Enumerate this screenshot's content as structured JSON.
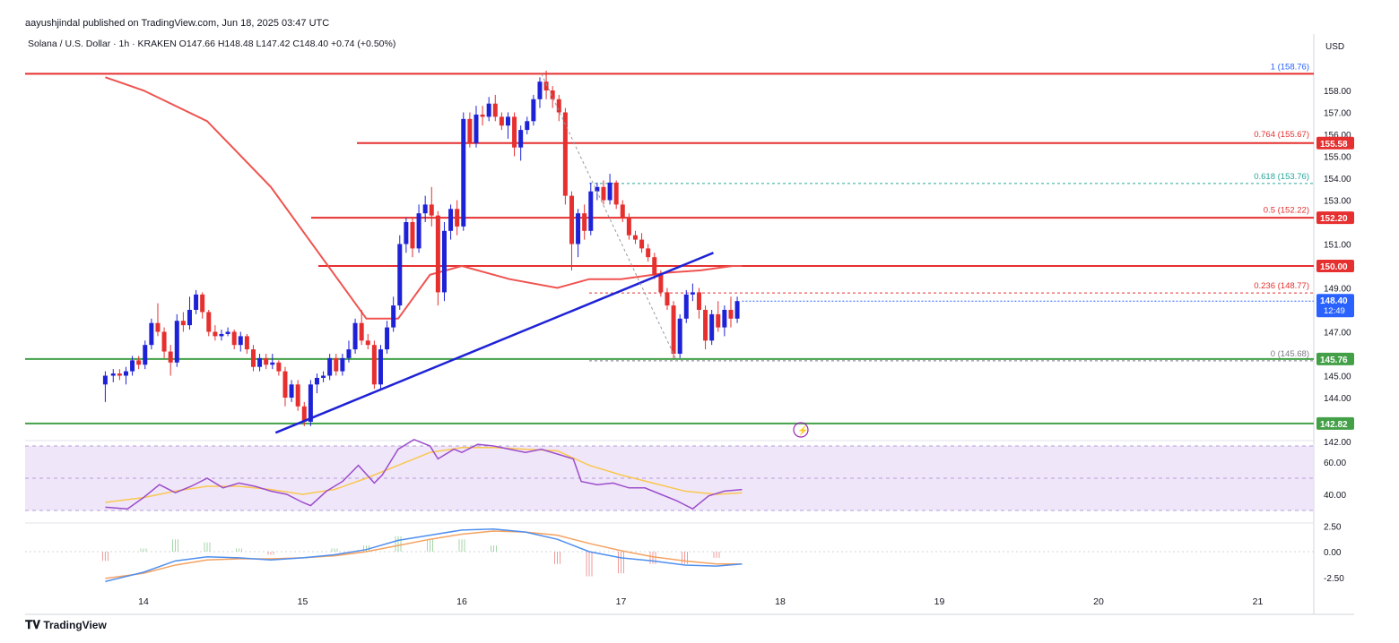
{
  "header": {
    "publisher": "aayushjindal published on TradingView.com, Jun 18, 2025 03:47 UTC",
    "symbol_line": "Solana / U.S. Dollar · 1h · KRAKEN  O147.66  H148.48  L147.42  C148.40  +0.74 (+0.50%)"
  },
  "footer": {
    "brand": "TradingView"
  },
  "chart_data": {
    "type": "candlestick",
    "currency": "USD",
    "x_tick_labels": [
      "14",
      "15",
      "16",
      "17",
      "18",
      "19",
      "20",
      "21"
    ],
    "price_axis": {
      "ticks": [
        "158.00",
        "157.00",
        "156.00",
        "155.00",
        "154.00",
        "153.00",
        "151.00",
        "149.00",
        "147.00",
        "145.00",
        "144.00",
        "142.00"
      ],
      "ylim": [
        141.4,
        159.6
      ]
    },
    "last_price": {
      "value": "148.40",
      "timer": "12:49",
      "color": "#2962ff"
    },
    "horizontal_levels": [
      {
        "label": "155.58",
        "value": 155.6,
        "color": "#e62f2f"
      },
      {
        "label": "152.20",
        "value": 152.2,
        "color": "#e62f2f"
      },
      {
        "label": "150.00",
        "value": 150.0,
        "color": "#e62f2f"
      },
      {
        "label": "145.76",
        "value": 145.76,
        "color": "#43a047"
      },
      {
        "label": "142.82",
        "value": 142.82,
        "color": "#43a047"
      }
    ],
    "top_red_level": 158.76,
    "fibonacci": [
      {
        "label": "1 (158.76)",
        "value": 158.76,
        "color": "#2962ff"
      },
      {
        "label": "0.764 (155.67)",
        "value": 155.67,
        "color": "#e62f2f"
      },
      {
        "label": "0.618 (153.76)",
        "value": 153.76,
        "color": "#26a69a"
      },
      {
        "label": "0.5 (152.22)",
        "value": 152.22,
        "color": "#e62f2f"
      },
      {
        "label": "0.236 (148.77)",
        "value": 148.77,
        "color": "#e62f2f"
      },
      {
        "label": "0 (145.68)",
        "value": 145.68,
        "color": "#787b86"
      }
    ],
    "trendline": {
      "from": {
        "day": 14.83,
        "price": 142.4
      },
      "to": {
        "day": 17.58,
        "price": 150.6
      },
      "color": "#1e22d6"
    },
    "candles": [
      [
        13.76,
        144.6,
        145.0,
        143.8,
        145.2
      ],
      [
        13.81,
        145.0,
        145.1,
        144.7,
        145.3
      ],
      [
        13.85,
        145.1,
        145.0,
        144.8,
        145.3
      ],
      [
        13.89,
        145.0,
        145.2,
        144.6,
        145.4
      ],
      [
        13.93,
        145.2,
        145.7,
        145.0,
        145.9
      ],
      [
        13.97,
        145.7,
        145.5,
        145.3,
        145.9
      ],
      [
        14.01,
        145.5,
        146.4,
        145.3,
        146.6
      ],
      [
        14.05,
        146.4,
        147.4,
        146.2,
        147.6
      ],
      [
        14.09,
        147.4,
        147.0,
        146.8,
        148.3
      ],
      [
        14.13,
        147.0,
        146.1,
        145.8,
        147.2
      ],
      [
        14.17,
        146.1,
        145.6,
        145.0,
        146.4
      ],
      [
        14.21,
        145.6,
        147.5,
        145.4,
        147.8
      ],
      [
        14.25,
        147.5,
        147.3,
        147.0,
        147.9
      ],
      [
        14.29,
        147.3,
        148.0,
        147.1,
        148.6
      ],
      [
        14.33,
        148.0,
        148.7,
        147.8,
        148.9
      ],
      [
        14.37,
        148.7,
        147.9,
        147.6,
        148.8
      ],
      [
        14.41,
        147.9,
        147.0,
        146.8,
        148.0
      ],
      [
        14.45,
        147.0,
        146.8,
        146.6,
        147.3
      ],
      [
        14.49,
        146.8,
        146.9,
        146.6,
        147.1
      ],
      [
        14.53,
        146.9,
        147.0,
        146.8,
        147.2
      ],
      [
        14.57,
        147.0,
        146.4,
        146.2,
        147.1
      ],
      [
        14.61,
        146.4,
        146.8,
        146.1,
        147.0
      ],
      [
        14.65,
        146.8,
        146.2,
        146.0,
        146.9
      ],
      [
        14.69,
        146.2,
        145.4,
        145.2,
        146.4
      ],
      [
        14.73,
        145.4,
        145.8,
        145.2,
        146.0
      ],
      [
        14.77,
        145.8,
        145.5,
        145.3,
        146.0
      ],
      [
        14.81,
        145.5,
        145.6,
        145.3,
        146.0
      ],
      [
        14.85,
        145.6,
        145.2,
        145.0,
        145.7
      ],
      [
        14.89,
        145.2,
        144.0,
        143.6,
        145.4
      ],
      [
        14.93,
        144.0,
        144.6,
        143.8,
        144.8
      ],
      [
        14.97,
        144.6,
        143.6,
        143.4,
        144.8
      ],
      [
        15.01,
        143.6,
        142.9,
        142.7,
        143.8
      ],
      [
        15.05,
        142.9,
        144.6,
        142.7,
        144.8
      ],
      [
        15.09,
        144.6,
        144.9,
        144.2,
        145.1
      ],
      [
        15.13,
        144.9,
        145.0,
        144.7,
        145.2
      ],
      [
        15.17,
        145.0,
        145.8,
        144.8,
        146.0
      ],
      [
        15.21,
        145.8,
        145.2,
        145.0,
        146.0
      ],
      [
        15.25,
        145.2,
        145.8,
        145.0,
        146.0
      ],
      [
        15.29,
        145.8,
        146.2,
        145.6,
        146.6
      ],
      [
        15.33,
        146.2,
        147.4,
        146.0,
        147.6
      ],
      [
        15.37,
        147.4,
        146.6,
        146.4,
        148.0
      ],
      [
        15.41,
        146.6,
        146.4,
        146.2,
        146.9
      ],
      [
        15.45,
        146.4,
        144.6,
        144.4,
        146.6
      ],
      [
        15.49,
        144.6,
        146.2,
        144.4,
        146.4
      ],
      [
        15.53,
        146.2,
        147.2,
        146.0,
        147.5
      ],
      [
        15.57,
        147.2,
        148.2,
        147.0,
        148.6
      ],
      [
        15.61,
        148.2,
        151.0,
        148.0,
        151.4
      ],
      [
        15.65,
        151.0,
        152.0,
        150.6,
        152.2
      ],
      [
        15.69,
        152.0,
        150.8,
        150.4,
        152.2
      ],
      [
        15.73,
        150.8,
        152.4,
        150.6,
        152.8
      ],
      [
        15.77,
        152.4,
        152.8,
        152.0,
        153.2
      ],
      [
        15.81,
        152.8,
        152.3,
        151.8,
        153.6
      ],
      [
        15.85,
        152.3,
        148.8,
        148.2,
        152.5
      ],
      [
        15.89,
        148.8,
        151.6,
        148.4,
        152.0
      ],
      [
        15.93,
        151.6,
        152.6,
        151.2,
        152.8
      ],
      [
        15.97,
        152.6,
        151.8,
        151.4,
        153.0
      ],
      [
        16.01,
        151.8,
        156.7,
        151.6,
        157.0
      ],
      [
        16.05,
        156.7,
        155.6,
        155.4,
        157.0
      ],
      [
        16.09,
        155.6,
        156.9,
        155.4,
        157.3
      ],
      [
        16.13,
        156.9,
        156.8,
        156.4,
        157.3
      ],
      [
        16.17,
        156.8,
        157.4,
        156.6,
        157.7
      ],
      [
        16.21,
        157.4,
        156.8,
        156.6,
        157.8
      ],
      [
        16.25,
        156.8,
        156.4,
        156.2,
        157.0
      ],
      [
        16.29,
        156.4,
        156.8,
        155.8,
        157.0
      ],
      [
        16.33,
        156.8,
        155.4,
        155.0,
        157.0
      ],
      [
        16.37,
        155.4,
        156.2,
        154.8,
        156.4
      ],
      [
        16.41,
        156.2,
        156.6,
        156.0,
        156.8
      ],
      [
        16.45,
        156.6,
        157.6,
        156.4,
        157.8
      ],
      [
        16.49,
        157.6,
        158.4,
        157.2,
        158.6
      ],
      [
        16.53,
        158.4,
        158.0,
        157.6,
        158.9
      ],
      [
        16.57,
        158.0,
        157.6,
        157.2,
        158.2
      ],
      [
        16.61,
        157.6,
        157.0,
        156.6,
        157.8
      ],
      [
        16.65,
        157.0,
        153.2,
        152.8,
        157.2
      ],
      [
        16.69,
        153.2,
        151.0,
        149.8,
        153.4
      ],
      [
        16.73,
        151.0,
        152.4,
        150.4,
        152.6
      ],
      [
        16.77,
        152.4,
        151.6,
        151.2,
        152.8
      ],
      [
        16.81,
        151.6,
        153.4,
        151.4,
        153.8
      ],
      [
        16.85,
        153.4,
        153.6,
        153.0,
        153.8
      ],
      [
        16.89,
        153.6,
        153.0,
        152.8,
        153.9
      ],
      [
        16.93,
        153.0,
        153.8,
        152.8,
        154.2
      ],
      [
        16.97,
        153.8,
        152.8,
        152.6,
        153.9
      ],
      [
        17.01,
        152.8,
        152.2,
        152.0,
        153.0
      ],
      [
        17.05,
        152.2,
        151.4,
        151.2,
        152.4
      ],
      [
        17.09,
        151.4,
        151.2,
        151.0,
        151.6
      ],
      [
        17.13,
        151.2,
        150.8,
        150.6,
        151.5
      ],
      [
        17.17,
        150.8,
        150.4,
        150.2,
        151.0
      ],
      [
        17.21,
        150.4,
        149.6,
        149.4,
        150.6
      ],
      [
        17.25,
        149.6,
        148.8,
        148.6,
        149.8
      ],
      [
        17.29,
        148.8,
        148.2,
        148.0,
        149.0
      ],
      [
        17.33,
        148.2,
        146.0,
        145.8,
        148.4
      ],
      [
        17.37,
        146.0,
        147.6,
        145.8,
        147.8
      ],
      [
        17.41,
        147.6,
        148.7,
        147.4,
        148.9
      ],
      [
        17.45,
        148.7,
        148.8,
        148.4,
        149.2
      ],
      [
        17.49,
        148.8,
        148.0,
        147.6,
        149.0
      ],
      [
        17.53,
        148.0,
        146.6,
        146.2,
        148.2
      ],
      [
        17.57,
        146.6,
        147.8,
        146.4,
        148.0
      ],
      [
        17.61,
        147.8,
        147.2,
        147.0,
        148.4
      ],
      [
        17.65,
        147.2,
        148.0,
        146.8,
        148.2
      ],
      [
        17.69,
        148.0,
        147.6,
        147.2,
        148.6
      ],
      [
        17.73,
        147.6,
        148.4,
        147.4,
        148.6
      ]
    ],
    "moving_average": [
      [
        13.76,
        158.6
      ],
      [
        14.0,
        158.0
      ],
      [
        14.4,
        156.6
      ],
      [
        14.8,
        153.6
      ],
      [
        15.1,
        150.6
      ],
      [
        15.4,
        147.6
      ],
      [
        15.6,
        147.6
      ],
      [
        15.8,
        149.6
      ],
      [
        16.0,
        150.0
      ],
      [
        16.3,
        149.4
      ],
      [
        16.6,
        149.0
      ],
      [
        16.8,
        149.4
      ],
      [
        17.0,
        149.4
      ],
      [
        17.3,
        149.7
      ],
      [
        17.5,
        149.8
      ],
      [
        17.7,
        150.0
      ],
      [
        17.76,
        150.0
      ]
    ],
    "rsi": {
      "axis_ticks": [
        "60.00",
        "40.00"
      ],
      "band": [
        30,
        70
      ],
      "series": [
        [
          13.76,
          32
        ],
        [
          13.9,
          31
        ],
        [
          14.0,
          38
        ],
        [
          14.1,
          46
        ],
        [
          14.2,
          41
        ],
        [
          14.3,
          45
        ],
        [
          14.4,
          50
        ],
        [
          14.5,
          44
        ],
        [
          14.6,
          47
        ],
        [
          14.7,
          45
        ],
        [
          14.8,
          42
        ],
        [
          14.9,
          40
        ],
        [
          15.0,
          35
        ],
        [
          15.05,
          33
        ],
        [
          15.15,
          42
        ],
        [
          15.25,
          48
        ],
        [
          15.35,
          58
        ],
        [
          15.45,
          47
        ],
        [
          15.5,
          52
        ],
        [
          15.6,
          68
        ],
        [
          15.7,
          74
        ],
        [
          15.8,
          70
        ],
        [
          15.85,
          62
        ],
        [
          15.95,
          68
        ],
        [
          16.0,
          66
        ],
        [
          16.1,
          71
        ],
        [
          16.2,
          70
        ],
        [
          16.3,
          68
        ],
        [
          16.4,
          66
        ],
        [
          16.5,
          68
        ],
        [
          16.6,
          65
        ],
        [
          16.7,
          62
        ],
        [
          16.75,
          48
        ],
        [
          16.85,
          46
        ],
        [
          16.95,
          47
        ],
        [
          17.05,
          44
        ],
        [
          17.15,
          44
        ],
        [
          17.25,
          40
        ],
        [
          17.35,
          36
        ],
        [
          17.45,
          31
        ],
        [
          17.55,
          39
        ],
        [
          17.65,
          42
        ],
        [
          17.76,
          43
        ]
      ],
      "signal": [
        [
          13.76,
          35
        ],
        [
          14.0,
          38
        ],
        [
          14.2,
          42
        ],
        [
          14.4,
          45
        ],
        [
          14.6,
          45
        ],
        [
          14.8,
          43
        ],
        [
          15.0,
          40
        ],
        [
          15.2,
          43
        ],
        [
          15.4,
          50
        ],
        [
          15.6,
          58
        ],
        [
          15.8,
          66
        ],
        [
          16.0,
          69
        ],
        [
          16.2,
          69
        ],
        [
          16.4,
          68
        ],
        [
          16.6,
          67
        ],
        [
          16.8,
          58
        ],
        [
          17.0,
          52
        ],
        [
          17.2,
          47
        ],
        [
          17.4,
          42
        ],
        [
          17.6,
          40
        ],
        [
          17.76,
          41
        ]
      ]
    },
    "macd": {
      "axis_ticks": [
        "2.50",
        "0.00",
        "-2.50"
      ],
      "macd_line": [
        [
          13.76,
          -2.9
        ],
        [
          14.0,
          -2.0
        ],
        [
          14.2,
          -0.9
        ],
        [
          14.4,
          -0.5
        ],
        [
          14.6,
          -0.6
        ],
        [
          14.8,
          -0.8
        ],
        [
          15.0,
          -0.6
        ],
        [
          15.2,
          -0.3
        ],
        [
          15.4,
          0.2
        ],
        [
          15.6,
          1.1
        ],
        [
          15.8,
          1.6
        ],
        [
          16.0,
          2.1
        ],
        [
          16.2,
          2.2
        ],
        [
          16.4,
          1.9
        ],
        [
          16.6,
          1.2
        ],
        [
          16.8,
          0.0
        ],
        [
          17.0,
          -0.6
        ],
        [
          17.2,
          -0.9
        ],
        [
          17.4,
          -1.3
        ],
        [
          17.6,
          -1.4
        ],
        [
          17.76,
          -1.2
        ]
      ],
      "signal_line": [
        [
          13.76,
          -2.6
        ],
        [
          14.0,
          -2.1
        ],
        [
          14.2,
          -1.3
        ],
        [
          14.4,
          -0.8
        ],
        [
          14.6,
          -0.7
        ],
        [
          14.8,
          -0.7
        ],
        [
          15.0,
          -0.6
        ],
        [
          15.2,
          -0.4
        ],
        [
          15.4,
          0.0
        ],
        [
          15.6,
          0.6
        ],
        [
          15.8,
          1.2
        ],
        [
          16.0,
          1.7
        ],
        [
          16.2,
          2.0
        ],
        [
          16.4,
          1.9
        ],
        [
          16.6,
          1.6
        ],
        [
          16.8,
          0.8
        ],
        [
          17.0,
          0.1
        ],
        [
          17.2,
          -0.5
        ],
        [
          17.4,
          -0.9
        ],
        [
          17.6,
          -1.2
        ],
        [
          17.76,
          -1.2
        ]
      ]
    },
    "colors": {
      "bull": "#1e22d6",
      "bear": "#e62f2f",
      "moving_average": "#ef5350",
      "rsi_line": "#9c4dcc",
      "rsi_signal": "#f9c74f",
      "rsi_band": "#eadcf7",
      "macd_line": "#4f8fef",
      "macd_signal": "#f4a261",
      "axis_text": "#131722",
      "grid": "#f0f3fa"
    }
  }
}
